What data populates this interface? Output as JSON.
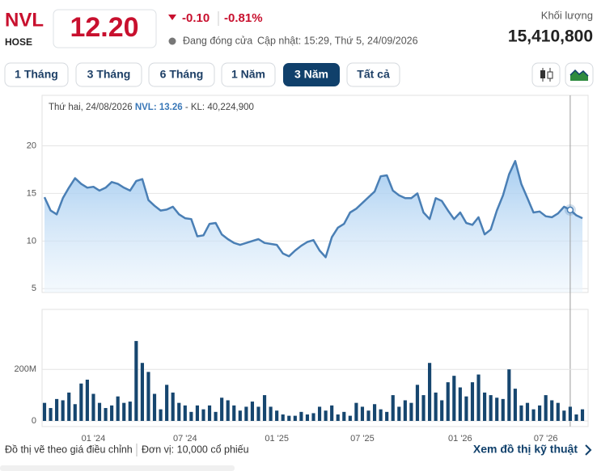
{
  "header": {
    "symbol": "NVL",
    "exchange": "HOSE",
    "price": "12.20",
    "change": "-0.10",
    "change_percent": "-0.81%",
    "status": "Đang đóng cửa",
    "updated": "Cập nhật: 15:29, Thứ 5, 24/09/2026",
    "volume_title": "Khối lượng",
    "volume": "15,410,800"
  },
  "ranges": [
    "1 Tháng",
    "3 Tháng",
    "6 Tháng",
    "1 Năm",
    "3 Năm",
    "Tất cả"
  ],
  "footer": {
    "note": "Đồ thị vẽ theo giá điều chỉnh",
    "unit": "Đơn vị: 10,000 cổ phiếu",
    "link": "Xem đồ thị kỹ thuật"
  },
  "chart_data": [
    {
      "type": "area",
      "color": "#4a7fb5",
      "values": [
        14.6,
        13.2,
        12.8,
        14.5,
        15.6,
        16.6,
        16.0,
        15.6,
        15.7,
        15.3,
        15.6,
        16.2,
        16.0,
        15.6,
        15.3,
        16.3,
        16.5,
        14.3,
        13.7,
        13.2,
        13.3,
        13.6,
        12.8,
        12.4,
        12.3,
        10.5,
        10.6,
        11.8,
        11.9,
        10.7,
        10.2,
        9.8,
        9.6,
        9.8,
        10.0,
        10.2,
        9.8,
        9.7,
        9.6,
        8.7,
        8.4,
        9.0,
        9.5,
        9.9,
        10.1,
        9.0,
        8.3,
        10.4,
        11.4,
        11.8,
        13.0,
        13.4,
        14.0,
        14.6,
        15.2,
        16.8,
        16.9,
        15.3,
        14.8,
        14.5,
        14.5,
        15.0,
        13.0,
        12.3,
        14.5,
        14.2,
        13.2,
        12.3,
        13.0,
        11.9,
        11.7,
        12.5,
        10.7,
        11.2,
        13.2,
        14.8,
        17.0,
        18.4,
        16.0,
        14.5,
        13.0,
        13.1,
        12.6,
        12.5,
        12.9,
        13.6,
        13.26,
        12.7,
        12.4
      ],
      "ylim": [
        4.6,
        25.3
      ],
      "yticks": [
        5,
        10,
        15,
        20
      ],
      "grid": true,
      "tooltip": {
        "date": "Thứ hai, 24/08/2026",
        "symbol": "NVL:",
        "price": 13.26,
        "volume_label": "- KL:",
        "volume": "40,224,900"
      }
    },
    {
      "type": "bar",
      "color": "#16466f",
      "values": [
        70,
        50,
        85,
        80,
        110,
        65,
        145,
        160,
        105,
        70,
        50,
        60,
        95,
        70,
        75,
        310,
        225,
        190,
        105,
        45,
        140,
        110,
        70,
        60,
        35,
        60,
        45,
        60,
        35,
        90,
        80,
        60,
        40,
        55,
        75,
        55,
        100,
        55,
        40,
        25,
        20,
        20,
        35,
        25,
        30,
        55,
        40,
        60,
        25,
        35,
        20,
        70,
        55,
        40,
        65,
        45,
        35,
        100,
        55,
        80,
        70,
        140,
        100,
        225,
        110,
        80,
        150,
        175,
        130,
        95,
        150,
        180,
        110,
        100,
        90,
        85,
        200,
        125,
        60,
        70,
        45,
        60,
        100,
        80,
        70,
        40,
        55,
        25,
        45
      ],
      "ylim": [
        0,
        420
      ],
      "yticks": [
        0,
        {
          "value": 200,
          "label": "200M"
        }
      ],
      "grid": true,
      "xticks": [
        {
          "value": 8,
          "label": "01 '24"
        },
        {
          "value": 23,
          "label": "07 '24"
        },
        {
          "value": 38,
          "label": "01 '25"
        },
        {
          "value": 52,
          "label": "07 '25"
        },
        {
          "value": 68,
          "label": "01 '26"
        },
        {
          "value": 82,
          "label": "07 '26"
        }
      ]
    }
  ]
}
